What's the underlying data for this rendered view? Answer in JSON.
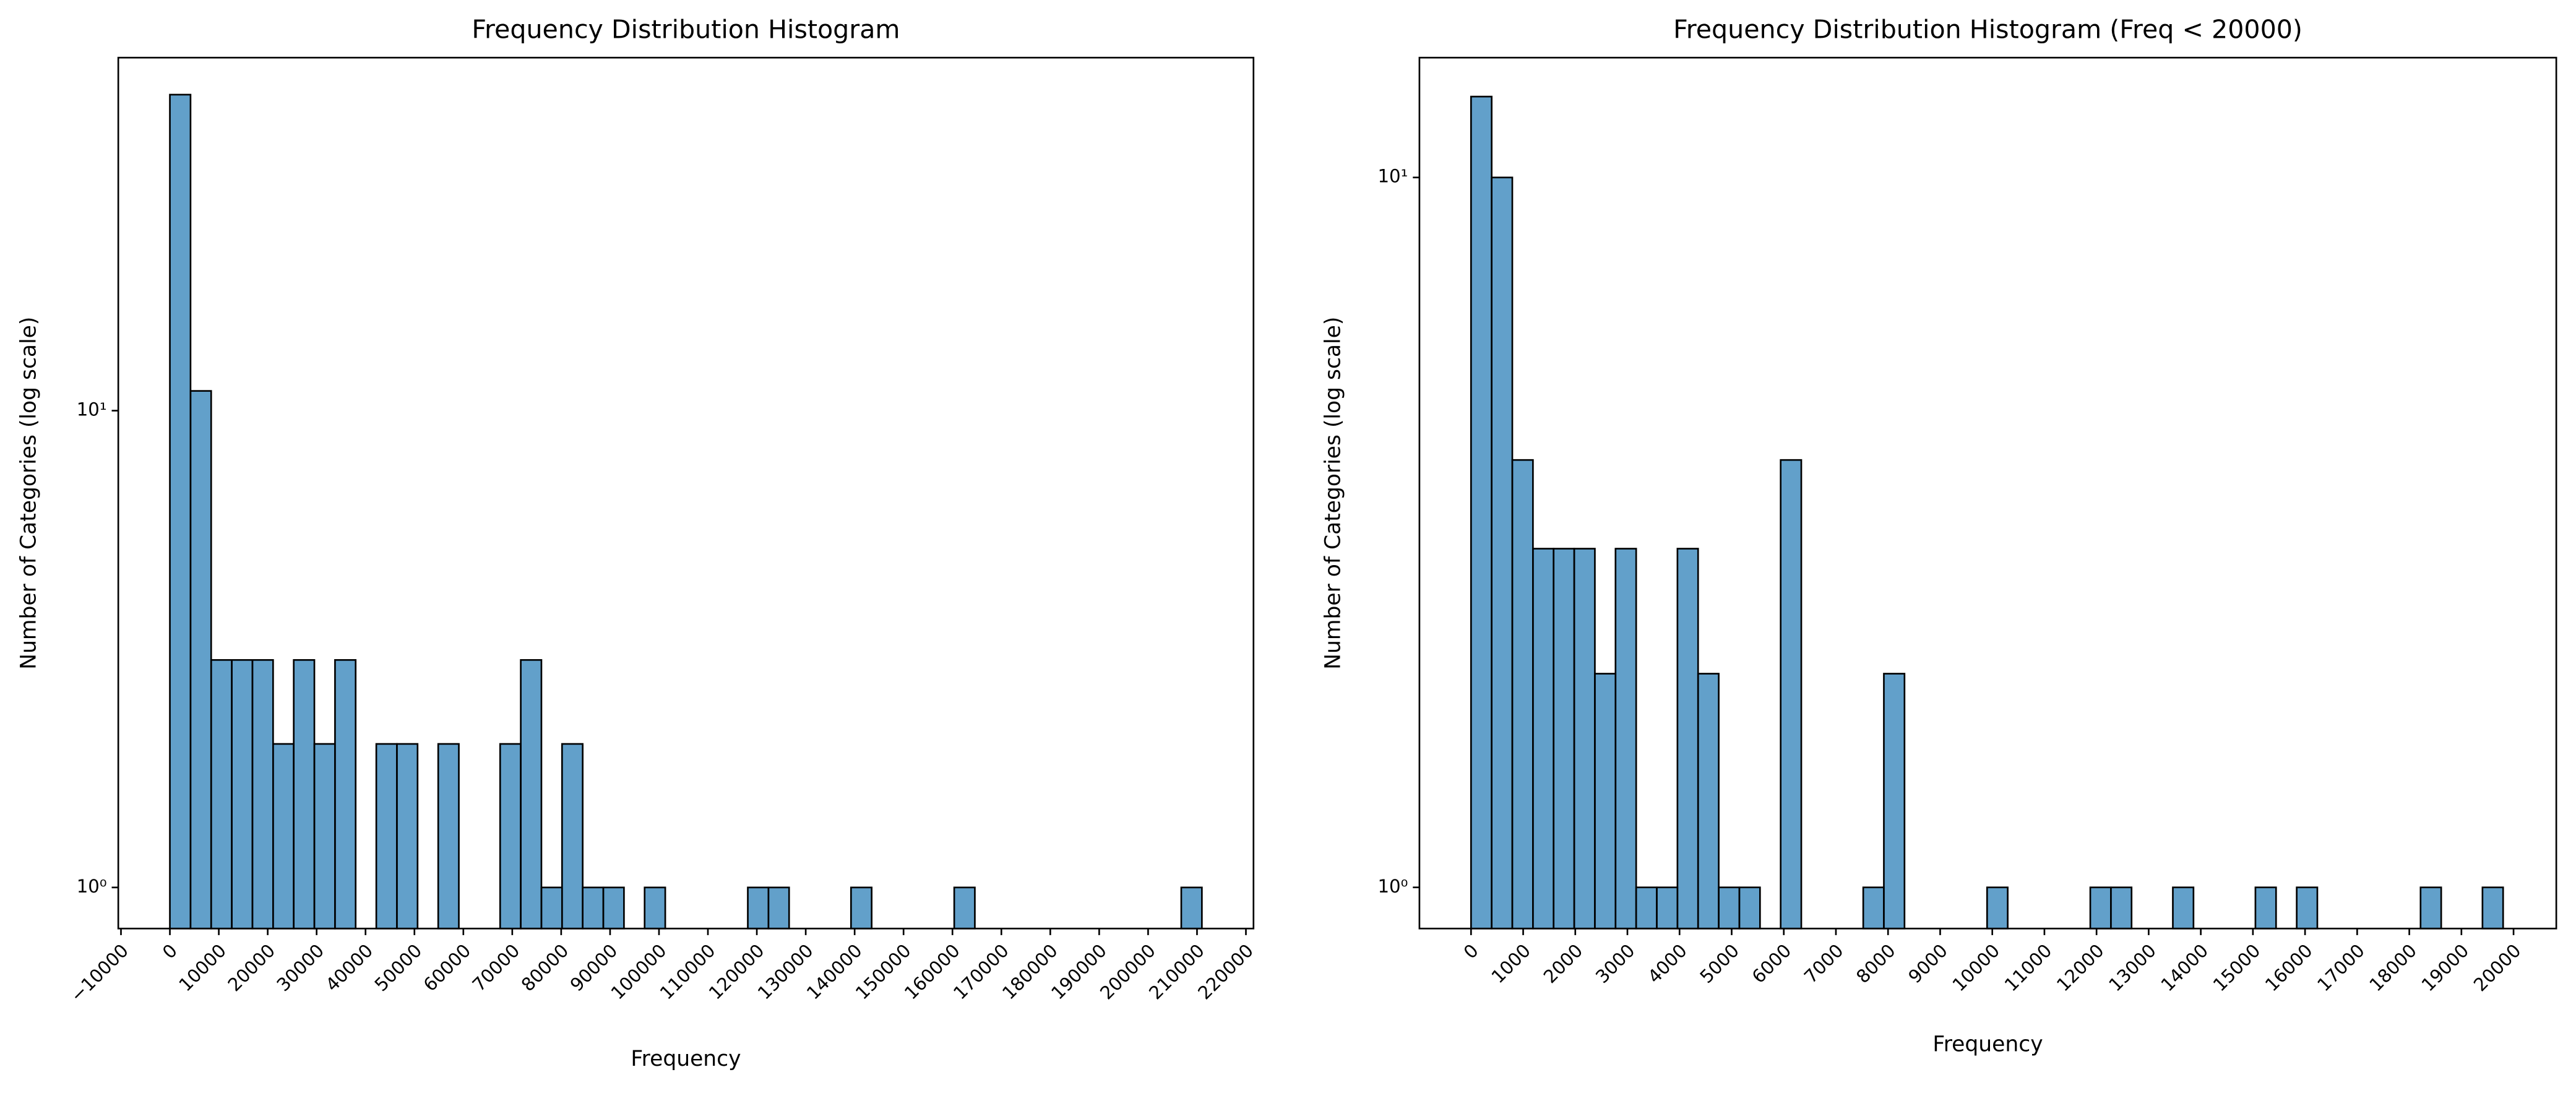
{
  "chart_data": [
    {
      "type": "histogram",
      "title": "Frequency Distribution Histogram",
      "xlabel": "Frequency",
      "ylabel": "Number of Categories (log scale)",
      "bins": [
        0,
        4220,
        8440,
        12660,
        16880,
        21100,
        25320,
        29540,
        33760,
        37980,
        42200,
        46420,
        50640,
        54860,
        59080,
        63300,
        67520,
        71740,
        75960,
        80180,
        84400,
        88620,
        92840,
        97060,
        101280,
        105500,
        109720,
        113940,
        118160,
        122380,
        126600,
        130820,
        135040,
        139260,
        143480,
        147700,
        151920,
        156140,
        160360,
        164580,
        168800,
        173020,
        177240,
        181460,
        185680,
        189900,
        194120,
        198340,
        202560,
        206780,
        211000
      ],
      "values": [
        46,
        11,
        3,
        3,
        3,
        2,
        3,
        2,
        3,
        0,
        2,
        2,
        0,
        2,
        0,
        0,
        2,
        3,
        1,
        2,
        1,
        1,
        0,
        1,
        0,
        0,
        0,
        0,
        1,
        1,
        0,
        0,
        0,
        1,
        0,
        0,
        0,
        0,
        1,
        0,
        0,
        0,
        0,
        0,
        0,
        0,
        0,
        0,
        0,
        1
      ],
      "color": "#1f77b4",
      "alpha": 0.7,
      "edgecolor": "#000000",
      "log_y": true,
      "xlim": [
        -10550,
        221550
      ],
      "xticks": [
        {
          "value": -10000,
          "label": "−10000"
        },
        0,
        10000,
        20000,
        30000,
        40000,
        50000,
        60000,
        70000,
        80000,
        90000,
        100000,
        110000,
        120000,
        130000,
        140000,
        150000,
        160000,
        170000,
        180000,
        190000,
        200000,
        210000,
        220000
      ],
      "ylim": [
        0.82,
        55
      ],
      "yticks": [
        {
          "value": 1,
          "label": "10⁰"
        },
        {
          "value": 10,
          "label": "10¹"
        }
      ]
    },
    {
      "type": "histogram",
      "title": "Frequency Distribution Histogram (Freq < 20000)",
      "xlabel": "Frequency",
      "ylabel": "Number of Categories (log scale)",
      "bins": [
        0,
        396,
        792,
        1188,
        1584,
        1980,
        2376,
        2772,
        3168,
        3564,
        3960,
        4356,
        4752,
        5148,
        5544,
        5940,
        6336,
        6732,
        7128,
        7524,
        7920,
        8316,
        8712,
        9108,
        9504,
        9900,
        10296,
        10692,
        11088,
        11484,
        11880,
        12276,
        12672,
        13068,
        13464,
        13860,
        14256,
        14652,
        15048,
        15444,
        15840,
        16236,
        16632,
        17028,
        17424,
        17820,
        18216,
        18612,
        19008,
        19404,
        19800
      ],
      "values": [
        13,
        10,
        4,
        3,
        3,
        3,
        2,
        3,
        1,
        1,
        3,
        2,
        1,
        1,
        0,
        4,
        0,
        0,
        0,
        1,
        2,
        0,
        0,
        0,
        0,
        1,
        0,
        0,
        0,
        0,
        1,
        1,
        0,
        0,
        1,
        0,
        0,
        0,
        1,
        0,
        1,
        0,
        0,
        0,
        0,
        0,
        1,
        0,
        0,
        1
      ],
      "color": "#1f77b4",
      "alpha": 0.7,
      "edgecolor": "#000000",
      "log_y": true,
      "xlim": [
        -990,
        20820
      ],
      "xticks": [
        0,
        1000,
        2000,
        3000,
        4000,
        5000,
        6000,
        7000,
        8000,
        9000,
        10000,
        11000,
        12000,
        13000,
        14000,
        15000,
        16000,
        17000,
        18000,
        19000,
        20000
      ],
      "ylim": [
        0.875,
        14.75
      ],
      "yticks": [
        {
          "value": 1,
          "label": "10⁰"
        },
        {
          "value": 10,
          "label": "10¹"
        }
      ]
    }
  ]
}
